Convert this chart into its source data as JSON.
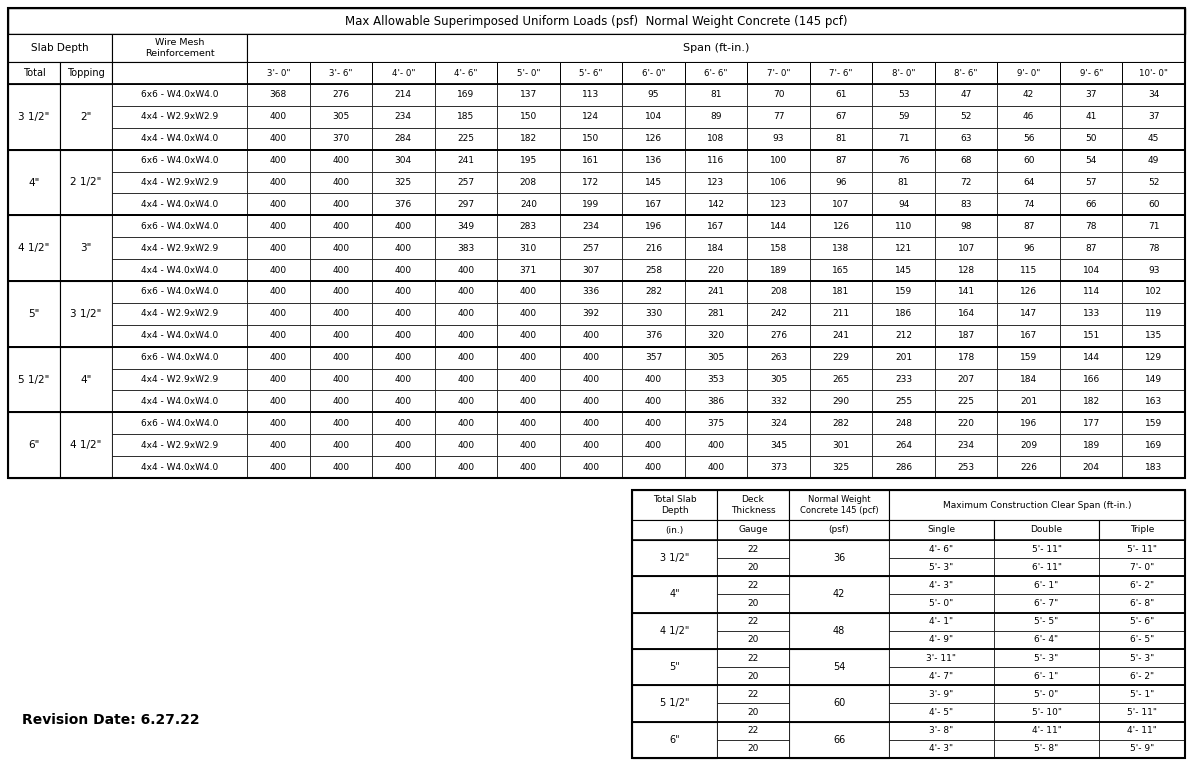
{
  "title": "Max Allowable Superimposed Uniform Loads (psf)  Normal Weight Concrete (145 pcf)",
  "col_headers": [
    "3'- 0\"",
    "3'- 6\"",
    "4'- 0\"",
    "4'- 6\"",
    "5'- 0\"",
    "5'- 6\"",
    "6'- 0\"",
    "6'- 6\"",
    "7'- 0\"",
    "7'- 6\"",
    "8'- 0\"",
    "8'- 6\"",
    "9'- 0\"",
    "9'- 6\"",
    "10'- 0\""
  ],
  "groups": [
    {
      "total": "3 1/2\"",
      "topping": "2\"",
      "rows": [
        {
          "wire": "6x6 - W4.0xW4.0",
          "values": [
            368,
            276,
            214,
            169,
            137,
            113,
            95,
            81,
            70,
            61,
            53,
            47,
            42,
            37,
            34
          ]
        },
        {
          "wire": "4x4 - W2.9xW2.9",
          "values": [
            400,
            305,
            234,
            185,
            150,
            124,
            104,
            89,
            77,
            67,
            59,
            52,
            46,
            41,
            37
          ]
        },
        {
          "wire": "4x4 - W4.0xW4.0",
          "values": [
            400,
            370,
            284,
            225,
            182,
            150,
            126,
            108,
            93,
            81,
            71,
            63,
            56,
            50,
            45
          ]
        }
      ]
    },
    {
      "total": "4\"",
      "topping": "2 1/2\"",
      "rows": [
        {
          "wire": "6x6 - W4.0xW4.0",
          "values": [
            400,
            400,
            304,
            241,
            195,
            161,
            136,
            116,
            100,
            87,
            76,
            68,
            60,
            54,
            49
          ]
        },
        {
          "wire": "4x4 - W2.9xW2.9",
          "values": [
            400,
            400,
            325,
            257,
            208,
            172,
            145,
            123,
            106,
            96,
            81,
            72,
            64,
            57,
            52
          ]
        },
        {
          "wire": "4x4 - W4.0xW4.0",
          "values": [
            400,
            400,
            376,
            297,
            240,
            199,
            167,
            142,
            123,
            107,
            94,
            83,
            74,
            66,
            60
          ]
        }
      ]
    },
    {
      "total": "4 1/2\"",
      "topping": "3\"",
      "rows": [
        {
          "wire": "6x6 - W4.0xW4.0",
          "values": [
            400,
            400,
            400,
            349,
            283,
            234,
            196,
            167,
            144,
            126,
            110,
            98,
            87,
            78,
            71
          ]
        },
        {
          "wire": "4x4 - W2.9xW2.9",
          "values": [
            400,
            400,
            400,
            383,
            310,
            257,
            216,
            184,
            158,
            138,
            121,
            107,
            96,
            87,
            78
          ]
        },
        {
          "wire": "4x4 - W4.0xW4.0",
          "values": [
            400,
            400,
            400,
            400,
            371,
            307,
            258,
            220,
            189,
            165,
            145,
            128,
            115,
            104,
            93
          ]
        }
      ]
    },
    {
      "total": "5\"",
      "topping": "3 1/2\"",
      "rows": [
        {
          "wire": "6x6 - W4.0xW4.0",
          "values": [
            400,
            400,
            400,
            400,
            400,
            336,
            282,
            241,
            208,
            181,
            159,
            141,
            126,
            114,
            102
          ]
        },
        {
          "wire": "4x4 - W2.9xW2.9",
          "values": [
            400,
            400,
            400,
            400,
            400,
            392,
            330,
            281,
            242,
            211,
            186,
            164,
            147,
            133,
            119
          ]
        },
        {
          "wire": "4x4 - W4.0xW4.0",
          "values": [
            400,
            400,
            400,
            400,
            400,
            400,
            376,
            320,
            276,
            241,
            212,
            187,
            167,
            151,
            135
          ]
        }
      ]
    },
    {
      "total": "5 1/2\"",
      "topping": "4\"",
      "rows": [
        {
          "wire": "6x6 - W4.0xW4.0",
          "values": [
            400,
            400,
            400,
            400,
            400,
            400,
            357,
            305,
            263,
            229,
            201,
            178,
            159,
            144,
            129
          ]
        },
        {
          "wire": "4x4 - W2.9xW2.9",
          "values": [
            400,
            400,
            400,
            400,
            400,
            400,
            400,
            353,
            305,
            265,
            233,
            207,
            184,
            166,
            149
          ]
        },
        {
          "wire": "4x4 - W4.0xW4.0",
          "values": [
            400,
            400,
            400,
            400,
            400,
            400,
            400,
            386,
            332,
            290,
            255,
            225,
            201,
            182,
            163
          ]
        }
      ]
    },
    {
      "total": "6\"",
      "topping": "4 1/2\"",
      "rows": [
        {
          "wire": "6x6 - W4.0xW4.0",
          "values": [
            400,
            400,
            400,
            400,
            400,
            400,
            400,
            375,
            324,
            282,
            248,
            220,
            196,
            177,
            159
          ]
        },
        {
          "wire": "4x4 - W2.9xW2.9",
          "values": [
            400,
            400,
            400,
            400,
            400,
            400,
            400,
            400,
            345,
            301,
            264,
            234,
            209,
            189,
            169
          ]
        },
        {
          "wire": "4x4 - W4.0xW4.0",
          "values": [
            400,
            400,
            400,
            400,
            400,
            400,
            400,
            400,
            373,
            325,
            286,
            253,
            226,
            204,
            183
          ]
        }
      ]
    }
  ],
  "sub_groups": [
    {
      "depth": "3 1/2\"",
      "psf": "36",
      "rows": [
        {
          "gauge": "22",
          "single": "4'- 6\"",
          "double": "5'- 11\"",
          "triple": "5'- 11\""
        },
        {
          "gauge": "20",
          "single": "5'- 3\"",
          "double": "6'- 11\"",
          "triple": "7'- 0\""
        }
      ]
    },
    {
      "depth": "4\"",
      "psf": "42",
      "rows": [
        {
          "gauge": "22",
          "single": "4'- 3\"",
          "double": "6'- 1\"",
          "triple": "6'- 2\""
        },
        {
          "gauge": "20",
          "single": "5'- 0\"",
          "double": "6'- 7\"",
          "triple": "6'- 8\""
        }
      ]
    },
    {
      "depth": "4 1/2\"",
      "psf": "48",
      "rows": [
        {
          "gauge": "22",
          "single": "4'- 1\"",
          "double": "5'- 5\"",
          "triple": "5'- 6\""
        },
        {
          "gauge": "20",
          "single": "4'- 9\"",
          "double": "6'- 4\"",
          "triple": "6'- 5\""
        }
      ]
    },
    {
      "depth": "5\"",
      "psf": "54",
      "rows": [
        {
          "gauge": "22",
          "single": "3'- 11\"",
          "double": "5'- 3\"",
          "triple": "5'- 3\""
        },
        {
          "gauge": "20",
          "single": "4'- 7\"",
          "double": "6'- 1\"",
          "triple": "6'- 2\""
        }
      ]
    },
    {
      "depth": "5 1/2\"",
      "psf": "60",
      "rows": [
        {
          "gauge": "22",
          "single": "3'- 9\"",
          "double": "5'- 0\"",
          "triple": "5'- 1\""
        },
        {
          "gauge": "20",
          "single": "4'- 5\"",
          "double": "5'- 10\"",
          "triple": "5'- 11\""
        }
      ]
    },
    {
      "depth": "6\"",
      "psf": "66",
      "rows": [
        {
          "gauge": "22",
          "single": "3'- 8\"",
          "double": "4'- 11\"",
          "triple": "4'- 11\""
        },
        {
          "gauge": "20",
          "single": "4'- 3\"",
          "double": "5'- 8\"",
          "triple": "5'- 9\""
        }
      ]
    }
  ],
  "revision_text": "Revision Date: 6.27.22"
}
